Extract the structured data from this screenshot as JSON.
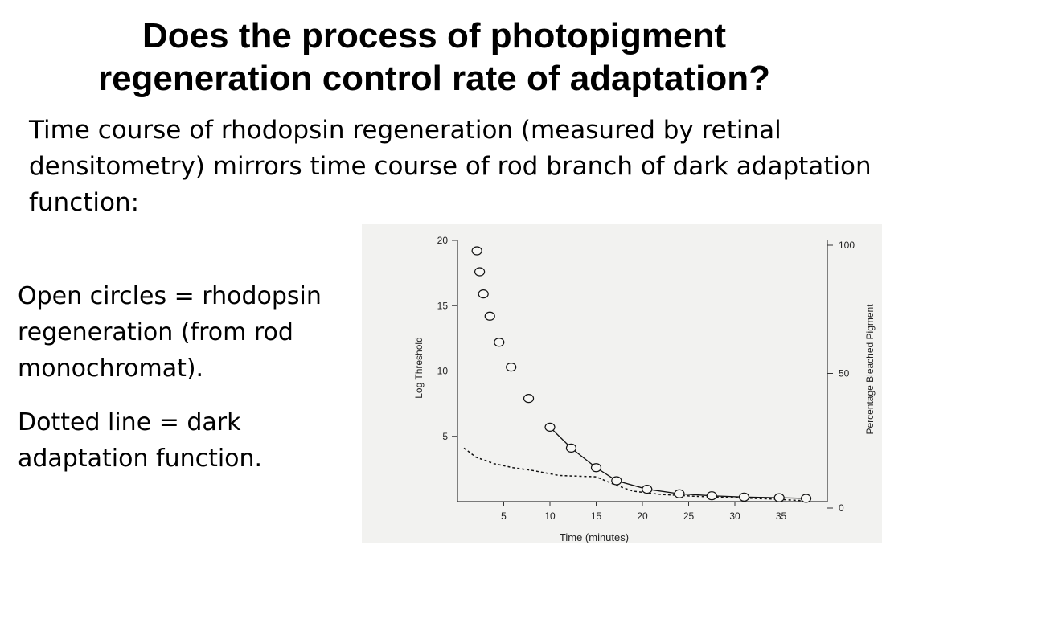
{
  "slide": {
    "title_line1": "Does the process of photopigment",
    "title_line2": "regeneration control rate of adaptation?",
    "subtitle": "Time course of rhodopsin regeneration (measured by retinal densitometry) mirrors time course of rod branch of dark adaptation function:",
    "legend_circles": "Open circles = rhodopsin regeneration (from rod monochromat).",
    "legend_dotted": "Dotted line = dark adaptation function."
  },
  "chart_data": {
    "type": "scatter",
    "xlabel": "Time (minutes)",
    "ylabel": "Log Threshold",
    "y2label": "Percentage Bleached Pigment",
    "xlim": [
      0,
      40
    ],
    "ylim": [
      0,
      20
    ],
    "y2lim": [
      0,
      100
    ],
    "x_ticks": [
      5,
      10,
      15,
      20,
      25,
      30,
      35
    ],
    "y_ticks": [
      5,
      10,
      15,
      20
    ],
    "y2_ticks": [
      0,
      50,
      100
    ],
    "grid": false,
    "series": [
      {
        "style": "open-circles",
        "x": [
          2.1,
          2.4,
          2.8,
          3.5,
          4.5,
          5.8,
          7.7,
          10.0,
          12.3,
          15.0,
          17.2,
          20.5,
          24.0,
          27.5,
          31.0,
          34.8,
          37.7
        ],
        "y": [
          19.2,
          17.6,
          15.9,
          14.2,
          12.2,
          10.3,
          7.9,
          5.7,
          4.1,
          2.6,
          1.6,
          0.95,
          0.6,
          0.45,
          0.35,
          0.3,
          0.25
        ],
        "line_from_index": 7
      },
      {
        "style": "dotted",
        "x": [
          0.7,
          2.0,
          4.0,
          6.0,
          8.0,
          9.5,
          11.0,
          13.0,
          15.0,
          17.0,
          19.0,
          22.0,
          26.0,
          30.0,
          34.0,
          38.0
        ],
        "y": [
          4.1,
          3.4,
          2.9,
          2.6,
          2.4,
          2.2,
          2.0,
          1.95,
          1.9,
          1.3,
          0.8,
          0.55,
          0.4,
          0.3,
          0.2,
          0.05
        ]
      }
    ]
  }
}
